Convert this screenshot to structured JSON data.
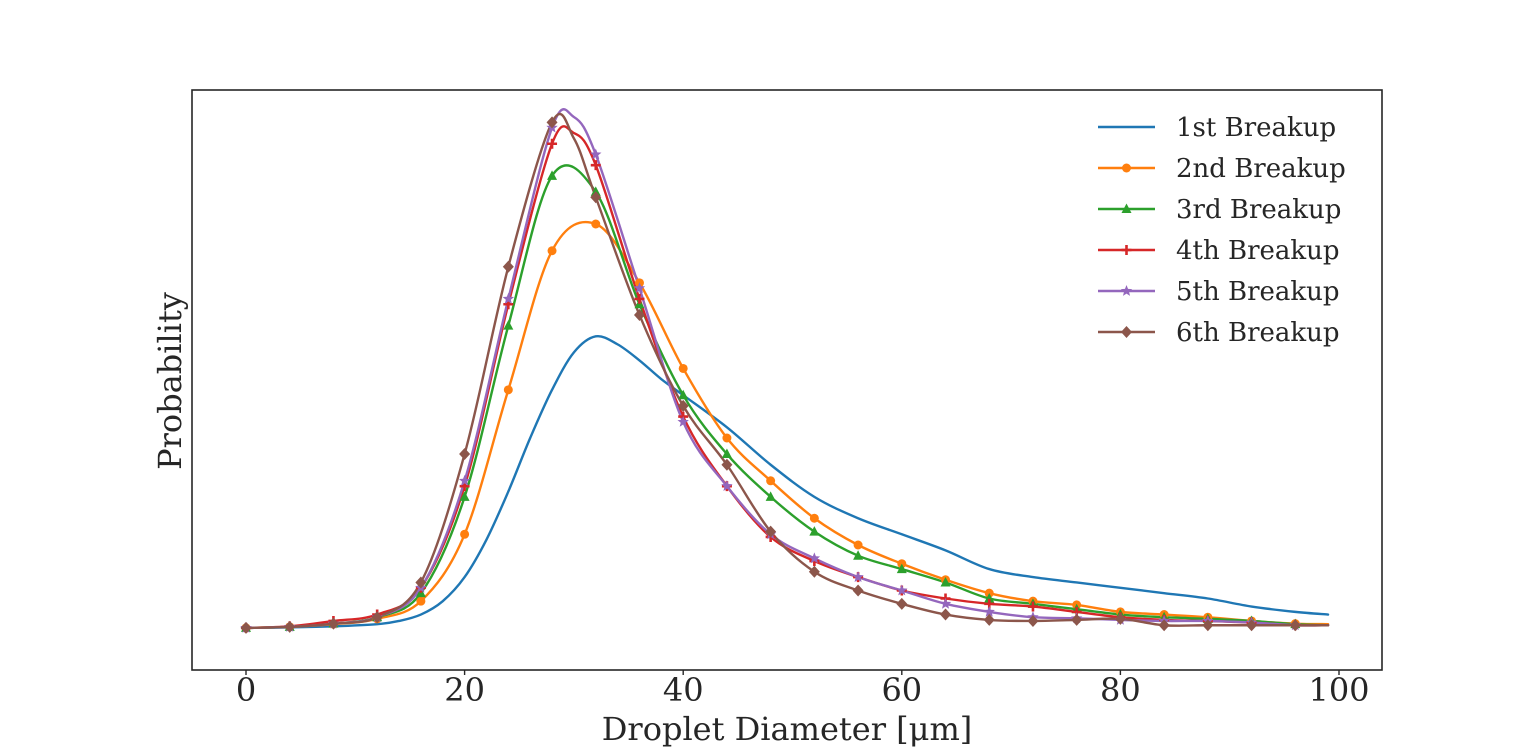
{
  "chart_data": {
    "type": "line",
    "title": "",
    "xlabel": "Droplet Diameter [μm]",
    "ylabel": "Probability",
    "xlim": [
      -5,
      104
    ],
    "ylim": [
      0,
      1.0
    ],
    "xticks": [
      "0",
      "20",
      "40",
      "60",
      "80",
      "100"
    ],
    "xtick_values": [
      0,
      20,
      40,
      60,
      80,
      100
    ],
    "yticks_shown": false,
    "grid": false,
    "legend_position": "top-right",
    "series": [
      {
        "name": "1st Breakup",
        "color": "#1f77b4",
        "marker": "none",
        "x": [
          0,
          4,
          8,
          12,
          14,
          16,
          18,
          20,
          22,
          24,
          26,
          28,
          30,
          32,
          34,
          36,
          38,
          40,
          44,
          48,
          52,
          56,
          60,
          64,
          68,
          72,
          76,
          80,
          84,
          88,
          92,
          96,
          99
        ],
        "y": [
          0.045,
          0.046,
          0.048,
          0.052,
          0.058,
          0.07,
          0.095,
          0.14,
          0.21,
          0.3,
          0.4,
          0.49,
          0.56,
          0.59,
          0.575,
          0.545,
          0.51,
          0.48,
          0.42,
          0.35,
          0.29,
          0.25,
          0.22,
          0.19,
          0.155,
          0.14,
          0.13,
          0.12,
          0.11,
          0.1,
          0.085,
          0.075,
          0.07
        ]
      },
      {
        "name": "2nd Breakup",
        "color": "#ff7f0e",
        "marker": "circle",
        "x": [
          0,
          4,
          8,
          12,
          16,
          20,
          24,
          28,
          32,
          36,
          40,
          44,
          48,
          52,
          56,
          60,
          64,
          68,
          72,
          76,
          80,
          84,
          88,
          92,
          96,
          99
        ],
        "y": [
          0.045,
          0.047,
          0.052,
          0.062,
          0.095,
          0.22,
          0.49,
          0.75,
          0.8,
          0.69,
          0.53,
          0.4,
          0.32,
          0.25,
          0.2,
          0.165,
          0.135,
          0.11,
          0.095,
          0.088,
          0.075,
          0.07,
          0.065,
          0.058,
          0.053,
          0.052
        ]
      },
      {
        "name": "3rd Breakup",
        "color": "#2ca02c",
        "marker": "triangle",
        "x": [
          0,
          4,
          8,
          12,
          16,
          20,
          24,
          28,
          32,
          36,
          40,
          44,
          48,
          52,
          56,
          60,
          64,
          68,
          72,
          76,
          80,
          84,
          88,
          92,
          96,
          99
        ],
        "y": [
          0.045,
          0.047,
          0.053,
          0.065,
          0.11,
          0.29,
          0.61,
          0.89,
          0.86,
          0.65,
          0.48,
          0.37,
          0.29,
          0.225,
          0.18,
          0.155,
          0.13,
          0.1,
          0.09,
          0.08,
          0.07,
          0.065,
          0.062,
          0.058,
          0.052,
          0.05
        ]
      },
      {
        "name": "4th Breakup",
        "color": "#d62728",
        "marker": "plus",
        "x": [
          0,
          4,
          8,
          12,
          16,
          20,
          24,
          28,
          30,
          32,
          36,
          40,
          44,
          48,
          52,
          56,
          60,
          64,
          68,
          72,
          76,
          80,
          84,
          88,
          92,
          96,
          99
        ],
        "y": [
          0.045,
          0.048,
          0.058,
          0.07,
          0.12,
          0.31,
          0.65,
          0.95,
          0.97,
          0.91,
          0.66,
          0.44,
          0.31,
          0.215,
          0.17,
          0.14,
          0.115,
          0.1,
          0.09,
          0.085,
          0.075,
          0.065,
          0.06,
          0.058,
          0.055,
          0.05,
          0.05
        ]
      },
      {
        "name": "5th Breakup",
        "color": "#9467bd",
        "marker": "star",
        "x": [
          0,
          4,
          8,
          12,
          16,
          20,
          24,
          28,
          30,
          32,
          36,
          40,
          44,
          48,
          52,
          56,
          60,
          64,
          68,
          72,
          76,
          80,
          84,
          88,
          92,
          96,
          99
        ],
        "y": [
          0.045,
          0.047,
          0.053,
          0.065,
          0.12,
          0.32,
          0.66,
          0.98,
          1.0,
          0.93,
          0.68,
          0.43,
          0.31,
          0.22,
          0.175,
          0.14,
          0.115,
          0.09,
          0.075,
          0.065,
          0.063,
          0.06,
          0.058,
          0.058,
          0.055,
          0.05,
          0.05
        ]
      },
      {
        "name": "6th Breakup",
        "color": "#8c564b",
        "marker": "diamond",
        "x": [
          0,
          4,
          8,
          12,
          16,
          20,
          24,
          28,
          30,
          32,
          36,
          40,
          44,
          48,
          52,
          56,
          60,
          64,
          68,
          72,
          76,
          80,
          84,
          88,
          92,
          96,
          99
        ],
        "y": [
          0.045,
          0.047,
          0.053,
          0.065,
          0.13,
          0.37,
          0.72,
          0.99,
          0.96,
          0.85,
          0.63,
          0.46,
          0.35,
          0.225,
          0.15,
          0.115,
          0.09,
          0.07,
          0.06,
          0.058,
          0.06,
          0.062,
          0.05,
          0.05,
          0.05,
          0.05,
          0.05
        ]
      }
    ]
  }
}
